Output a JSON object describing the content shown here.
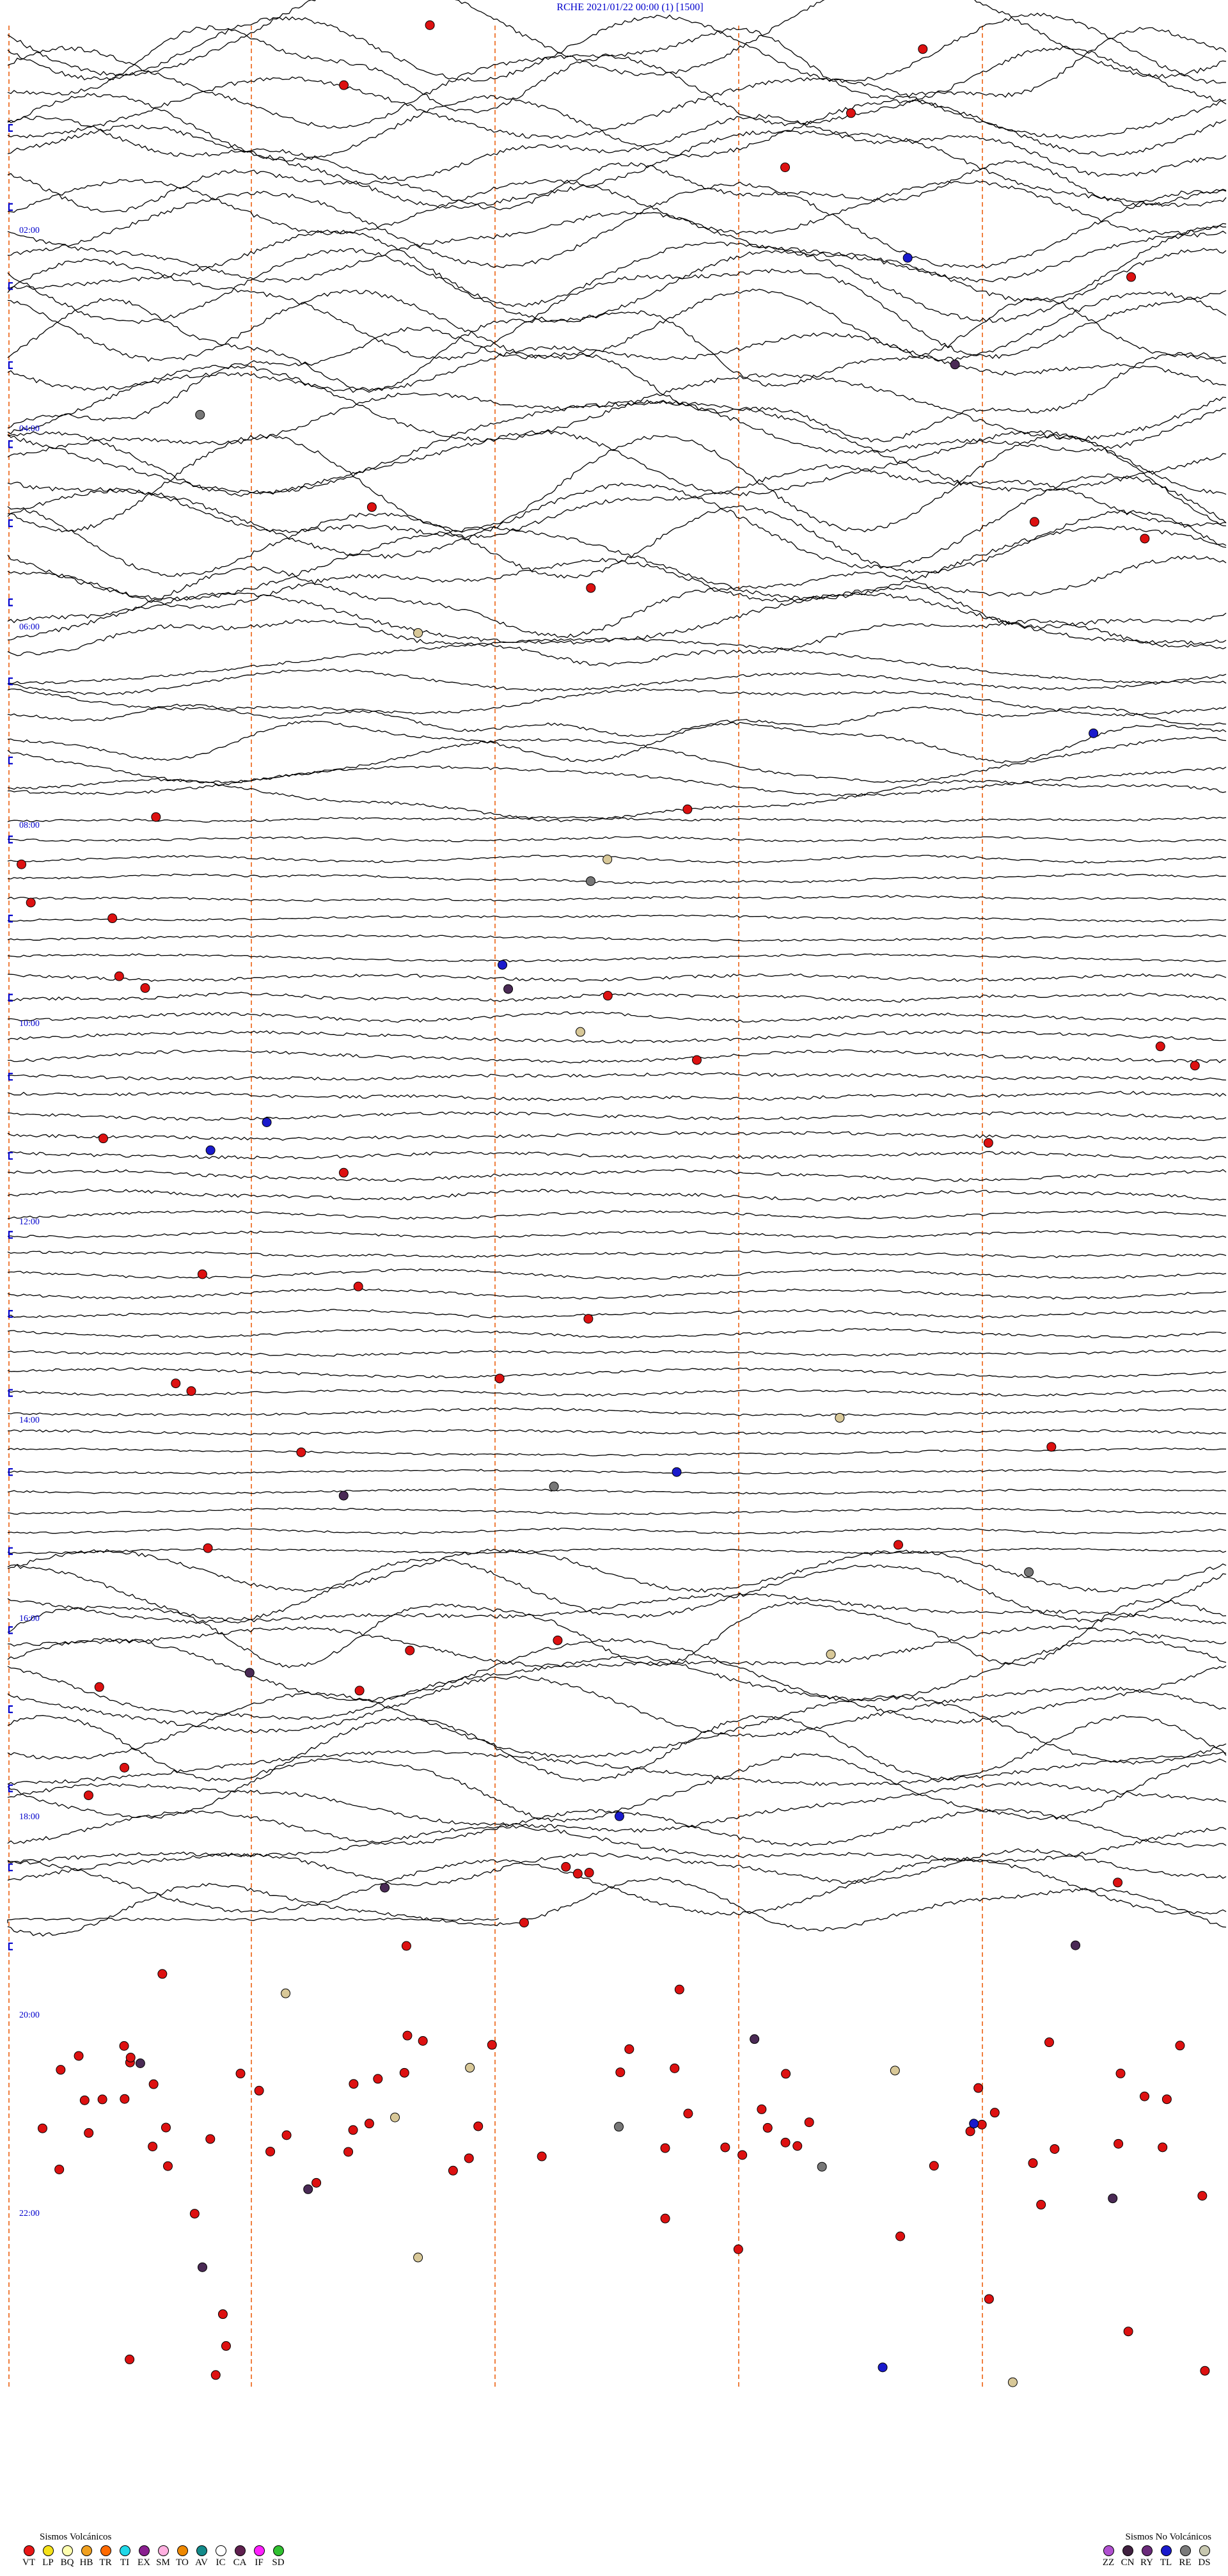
{
  "header": {
    "station": "RCHE",
    "datetime": "2021/01/22 00:00",
    "channel": "(1)",
    "scale": "[1500]",
    "color": "#0000cc"
  },
  "chart_data": {
    "type": "seismogram-helicorder",
    "title": "RCHE 2021/01/22 00:00 (1) [1500]",
    "time_labels": [
      "02:00",
      "04:00",
      "06:00",
      "08:00",
      "10:00",
      "12:00",
      "14:00",
      "16:00",
      "18:00",
      "20:00",
      "22:00"
    ],
    "minutes_per_line": 15,
    "lines_total": 96,
    "minute_markers": [
      3,
      6,
      9,
      12
    ],
    "colors": {
      "trace": "#000000",
      "minute_marker": "#f08040",
      "time_label": "#0000cc",
      "VT": "#dd1111",
      "BL": "#1a1acc",
      "DS": "#777777",
      "YE": "#d8c898",
      "PU": "#4a2a55"
    }
  },
  "legend_volcanic": {
    "title": "Sismos Volcánicos",
    "items": [
      {
        "code": "VT",
        "color": "#e81616"
      },
      {
        "code": "LP",
        "color": "#f5e11a"
      },
      {
        "code": "BQ",
        "color": "#ffffb0"
      },
      {
        "code": "HB",
        "color": "#f0a020"
      },
      {
        "code": "TR",
        "color": "#ff6a00"
      },
      {
        "code": "TI",
        "color": "#20d8e8"
      },
      {
        "code": "EX",
        "color": "#8a2090"
      },
      {
        "code": "SM",
        "color": "#ffb0e0"
      },
      {
        "code": "TO",
        "color": "#ee8800"
      },
      {
        "code": "AV",
        "color": "#138a8a"
      },
      {
        "code": "IC",
        "color": "#ffffff"
      },
      {
        "code": "CA",
        "color": "#602050"
      },
      {
        "code": "IF",
        "color": "#ff20ff"
      },
      {
        "code": "SD",
        "color": "#30c030"
      }
    ]
  },
  "legend_nonvolcanic": {
    "title": "Sismos No Volcánicos",
    "items": [
      {
        "code": "ZZ",
        "color": "#b050d0"
      },
      {
        "code": "CN",
        "color": "#402040"
      },
      {
        "code": "RY",
        "color": "#6a2a7a"
      },
      {
        "code": "TL",
        "color": "#1a1acc"
      },
      {
        "code": "RE",
        "color": "#7a7a7a"
      },
      {
        "code": "DS",
        "color": "#c8c8b0"
      }
    ]
  }
}
